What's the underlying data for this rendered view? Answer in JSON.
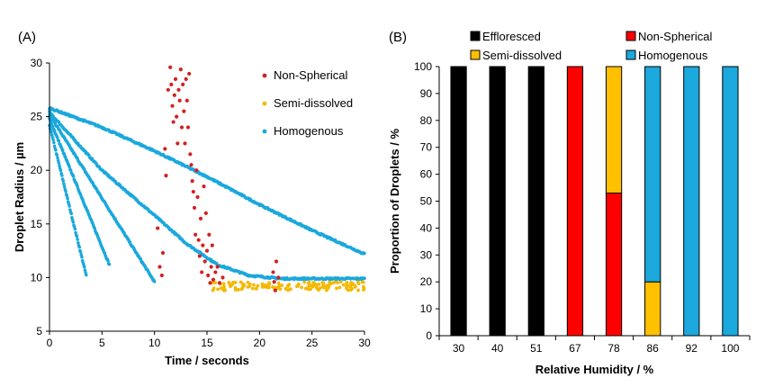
{
  "chart_data": [
    {
      "panel_label": "(A)",
      "type": "scatter",
      "xlabel": "Time / seconds",
      "ylabel": "Droplet Radius / µm",
      "xlim": [
        0,
        30
      ],
      "ylim": [
        5,
        30
      ],
      "xticks": [
        0,
        5,
        10,
        15,
        20,
        25,
        30
      ],
      "yticks": [
        5,
        10,
        15,
        20,
        25,
        30
      ],
      "legend": [
        "Non-Spherical",
        "Semi-dissolved",
        "Homogenous"
      ],
      "legend_position": "top-right",
      "colors": {
        "Non-Spherical": "#d42020",
        "Semi-dissolved": "#f5b800",
        "Homogenous": "#1ba8dc"
      },
      "series": [
        {
          "name": "Homogenous",
          "curves": [
            {
              "x": [
                0,
                3.5
              ],
              "y": [
                24.2,
                10.2
              ]
            },
            {
              "x": [
                0,
                5.7
              ],
              "y": [
                24.8,
                11.2
              ]
            },
            {
              "x": [
                0,
                10
              ],
              "y": [
                25.2,
                9.6
              ]
            },
            {
              "x": [
                0,
                5,
                10,
                13,
                16,
                19,
                22,
                30
              ],
              "y": [
                25.4,
                20.0,
                15.8,
                13.2,
                11.2,
                10.2,
                9.9,
                9.9
              ]
            },
            {
              "x": [
                0,
                5,
                10,
                15,
                20,
                25,
                30
              ],
              "y": [
                25.8,
                24.0,
                21.8,
                19.4,
                16.8,
                14.4,
                12.2
              ]
            }
          ]
        },
        {
          "name": "Semi-dissolved",
          "x_range": [
            15.5,
            30
          ],
          "y_center": 9.2,
          "y_spread": 0.4
        },
        {
          "name": "Non-Spherical",
          "points": [
            [
              10.3,
              14.6
            ],
            [
              10.5,
              11
            ],
            [
              10.7,
              10.2
            ],
            [
              10.8,
              12.3
            ],
            [
              11,
              22
            ],
            [
              11.1,
              19.5
            ],
            [
              11.3,
              27.5
            ],
            [
              11.5,
              29.6
            ],
            [
              11.6,
              28
            ],
            [
              11.7,
              26
            ],
            [
              11.8,
              24.5
            ],
            [
              11.9,
              27
            ],
            [
              12,
              28.5
            ],
            [
              12.1,
              25
            ],
            [
              12.2,
              22.5
            ],
            [
              12.3,
              27.5
            ],
            [
              12.4,
              26.5
            ],
            [
              12.5,
              29.4
            ],
            [
              12.6,
              24
            ],
            [
              12.7,
              28
            ],
            [
              12.8,
              25.5
            ],
            [
              12.9,
              22.5
            ],
            [
              13,
              28.5
            ],
            [
              13.1,
              26.5
            ],
            [
              13.2,
              24
            ],
            [
              13.3,
              29
            ],
            [
              13.4,
              21.5
            ],
            [
              13.5,
              20.5
            ],
            [
              13.6,
              19
            ],
            [
              13.7,
              18
            ],
            [
              13.8,
              16.5
            ],
            [
              13.9,
              14
            ],
            [
              14,
              20
            ],
            [
              14.1,
              17.5
            ],
            [
              14.2,
              13.5
            ],
            [
              14.3,
              12
            ],
            [
              14.4,
              15.5
            ],
            [
              14.5,
              10.5
            ],
            [
              14.6,
              13
            ],
            [
              14.7,
              18.5
            ],
            [
              14.8,
              11.5
            ],
            [
              14.9,
              16
            ],
            [
              15,
              12.5
            ],
            [
              15.1,
              10.2
            ],
            [
              15.2,
              14
            ],
            [
              15.3,
              9.5
            ],
            [
              15.4,
              11
            ],
            [
              15.5,
              13
            ],
            [
              15.6,
              9.8
            ],
            [
              15.8,
              10.5
            ],
            [
              16,
              11
            ],
            [
              16.2,
              9.5
            ],
            [
              16.5,
              10
            ],
            [
              21.3,
              10.5
            ],
            [
              21.5,
              8.8
            ],
            [
              21.6,
              11.5
            ],
            [
              21.4,
              9.6
            ],
            [
              21.8,
              10
            ]
          ]
        }
      ]
    },
    {
      "panel_label": "(B)",
      "type": "bar",
      "stacked": true,
      "xlabel": "Relative Humidity / %",
      "ylabel": "Proportion of Droplets / %",
      "ylim": [
        0,
        100
      ],
      "yticks": [
        0,
        10,
        20,
        30,
        40,
        50,
        60,
        70,
        80,
        90,
        100
      ],
      "categories": [
        "30",
        "40",
        "51",
        "67",
        "78",
        "86",
        "92",
        "100"
      ],
      "legend_position": "top",
      "series": [
        {
          "name": "Effloresced",
          "color": "#000000",
          "values": [
            100,
            100,
            100,
            0,
            0,
            0,
            0,
            0
          ]
        },
        {
          "name": "Non-Spherical",
          "color": "#ff0000",
          "values": [
            0,
            0,
            0,
            100,
            53,
            0,
            0,
            0
          ]
        },
        {
          "name": "Semi-dissolved",
          "color": "#ffc000",
          "values": [
            0,
            0,
            0,
            0,
            47,
            20,
            0,
            0
          ]
        },
        {
          "name": "Homogenous",
          "color": "#1ba8dc",
          "values": [
            0,
            0,
            0,
            0,
            0,
            80,
            100,
            100
          ]
        }
      ]
    }
  ]
}
